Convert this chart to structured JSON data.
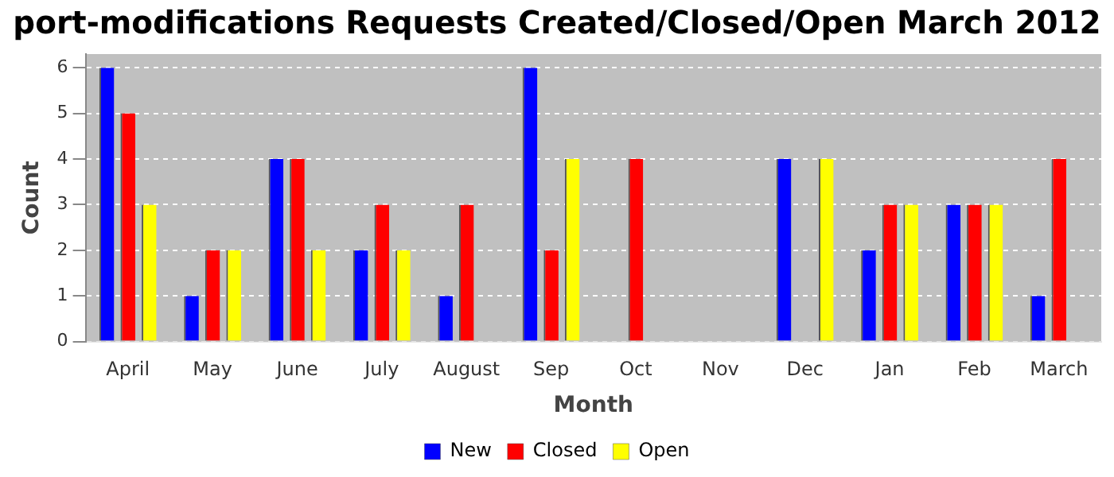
{
  "chart_data": {
    "type": "bar",
    "title": "port-modifications Requests Created/Closed/Open March 2012",
    "xlabel": "Month",
    "ylabel": "Count",
    "categories": [
      "April",
      "May",
      "June",
      "July",
      "August",
      "Sep",
      "Oct",
      "Nov",
      "Dec",
      "Jan",
      "Feb",
      "March"
    ],
    "series": [
      {
        "name": "New",
        "color": "#0000ff",
        "values": [
          6,
          1,
          4,
          2,
          1,
          6,
          0,
          0,
          4,
          2,
          3,
          1
        ]
      },
      {
        "name": "Closed",
        "color": "#ff0000",
        "values": [
          5,
          2,
          4,
          3,
          3,
          2,
          4,
          0,
          0,
          3,
          3,
          4
        ]
      },
      {
        "name": "Open",
        "color": "#ffff00",
        "values": [
          3,
          2,
          2,
          2,
          0,
          4,
          0,
          0,
          4,
          3,
          3,
          0
        ]
      }
    ],
    "ylim": [
      0,
      6.3
    ],
    "yticks": [
      0,
      1,
      2,
      3,
      4,
      5,
      6
    ],
    "grid": "y",
    "legend": "bottom"
  }
}
